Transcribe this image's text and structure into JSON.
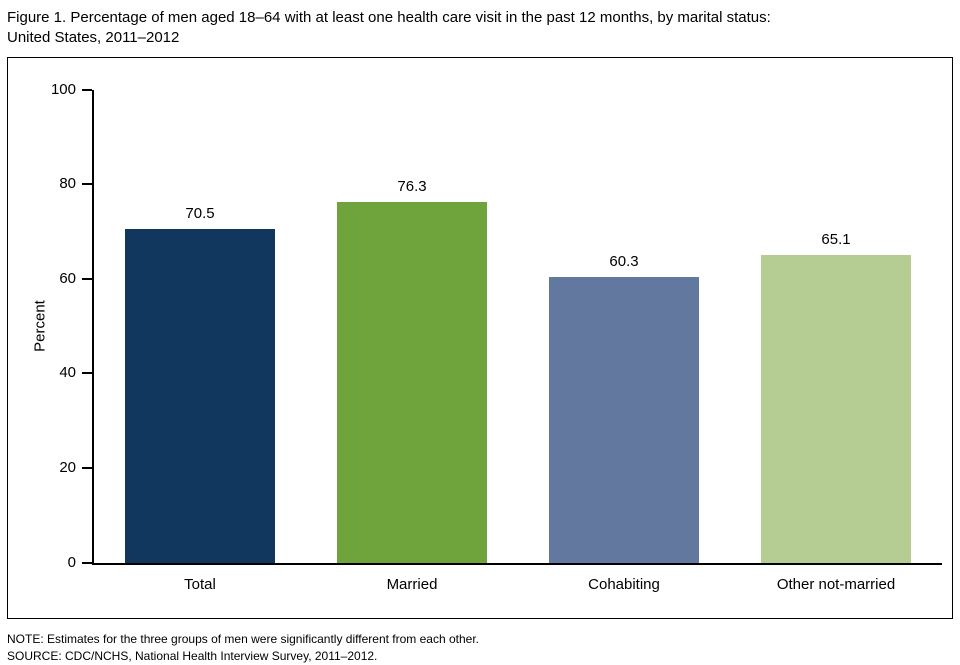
{
  "figure_title": {
    "line1": "Figure 1. Percentage of men aged 18–64 with at least one health care visit in the past 12 months, by marital status:",
    "line2": "United States, 2011–2012"
  },
  "notes": {
    "note": "NOTE: Estimates for the three groups of men were significantly different from each other.",
    "source": "SOURCE: CDC/NCHS, National Health Interview Survey, 2011–2012."
  },
  "chart_data": {
    "type": "bar",
    "title": "Figure 1. Percentage of men aged 18–64 with at least one health care visit in the past 12 months, by marital status: United States, 2011–2012",
    "categories": [
      "Total",
      "Married",
      "Cohabiting",
      "Other not-married"
    ],
    "values": [
      70.5,
      76.3,
      60.3,
      65.1
    ],
    "value_labels": [
      "70.5",
      "76.3",
      "60.3",
      "65.1"
    ],
    "bar_colors": [
      "#12375f",
      "#6fa33b",
      "#62789e",
      "#b5cc93"
    ],
    "xlabel": "",
    "ylabel": "Percent",
    "ylim": [
      0,
      100
    ],
    "yticks": [
      0,
      20,
      40,
      60,
      80,
      100
    ],
    "grid": false,
    "legend": "none"
  }
}
